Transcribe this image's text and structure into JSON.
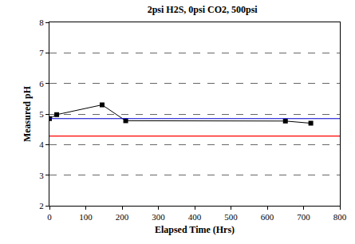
{
  "chart_data": {
    "type": "line",
    "title": "2psi H2S, 0psi CO2, 500psi",
    "x_label": "Elapsed Time (Hrs)",
    "y_label": "Measured pH",
    "x": [
      0,
      20,
      145,
      210,
      650,
      720
    ],
    "series": [
      {
        "color": "#000000",
        "marker": "square",
        "line_style": "solid",
        "values": [
          4.85,
          4.98,
          5.3,
          4.78,
          4.77,
          4.7
        ]
      }
    ],
    "hlines": [
      {
        "value": 4.85,
        "color": "#0000cc"
      },
      {
        "value": 4.28,
        "color": "#ff0000"
      }
    ],
    "xlim": [
      0,
      800
    ],
    "xticks": [
      0,
      100,
      200,
      300,
      400,
      500,
      600,
      700,
      800
    ],
    "ylim": [
      2,
      8
    ],
    "yticks": [
      2,
      3,
      4,
      5,
      6,
      7,
      8
    ],
    "grid": true
  }
}
